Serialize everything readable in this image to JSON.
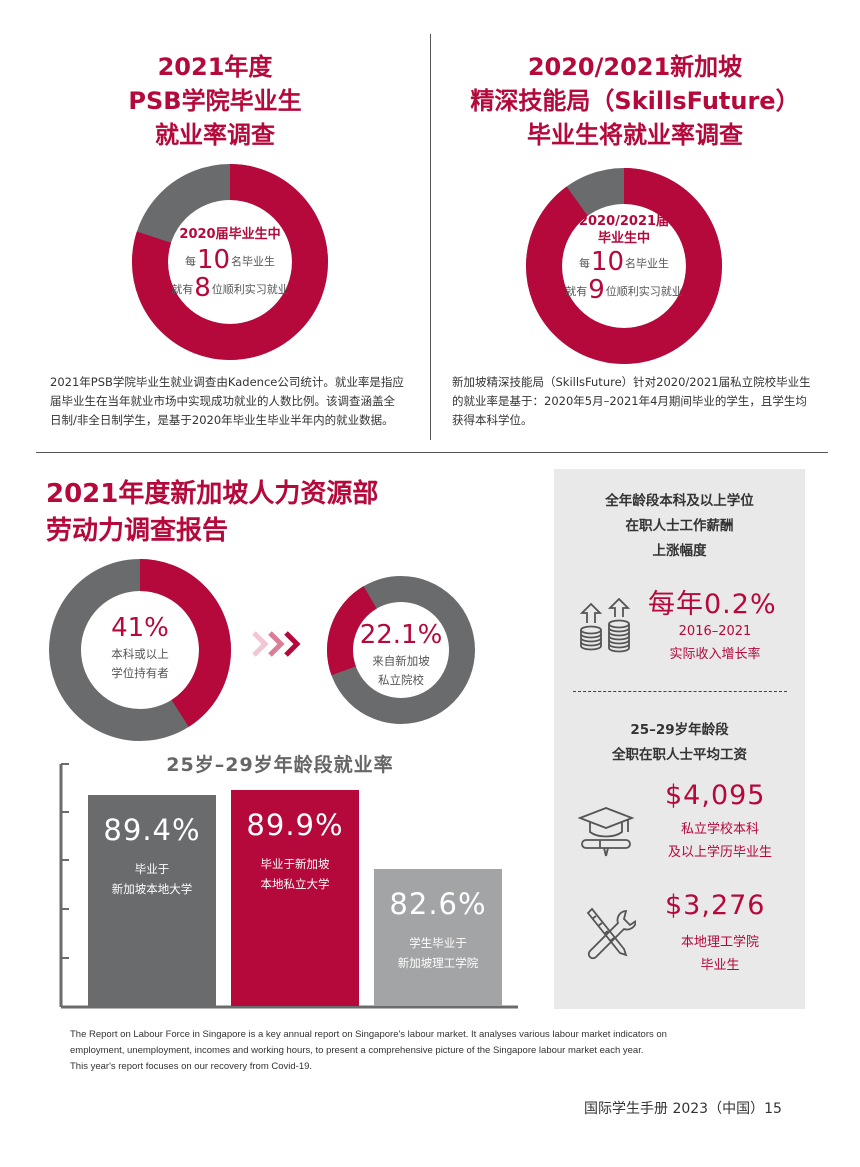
{
  "psb": {
    "title_lines": [
      "2021年度",
      "PSB学院毕业生",
      "就业率调查"
    ],
    "donut_head": "2020届毕业生中",
    "line1_pre": "每",
    "line1_num": "10",
    "line1_post": "名毕业生",
    "line2_pre": "就有",
    "line2_num": "8",
    "line2_post": "位顺利实习就业",
    "employed_fraction": 0.8,
    "para_lines": [
      "2021年PSB学院毕业生就业调查由Kadence公司统计。就业率是指应",
      "届毕业生在当年就业市场中实现成功就业的人数比例。该调查涵盖全",
      "日制/非全日制学生，是基于2020年毕业生毕业半年内的就业数据。"
    ]
  },
  "skillsfuture": {
    "title_lines": [
      "2020/2021新加坡",
      "精深技能局（SkillsFuture）",
      "毕业生将就业率调查"
    ],
    "donut_head_lines": [
      "2020/2021届",
      "毕业生中"
    ],
    "line1_pre": "每",
    "line1_num": "10",
    "line1_post": "名毕业生",
    "line2_pre": "就有",
    "line2_num": "9",
    "line2_post": "位顺利实习就业",
    "employed_fraction": 0.9,
    "para_lines": [
      "新加坡精深技能局（SkillsFuture）针对2020/2021届私立院校毕业生",
      "的就业率是基于：2020年5月–2021年4月期间毕业的学生，且学生均",
      "获得本科学位。"
    ]
  },
  "mom": {
    "title_lines": [
      "2021年度新加坡人力资源部",
      "劳动力调查报告"
    ],
    "degree_holders": {
      "value": "41%",
      "fraction": 0.41,
      "label_lines": [
        "本科或以上",
        "学位持有者"
      ]
    },
    "private_school": {
      "value": "22.1%",
      "fraction": 0.221,
      "label_lines": [
        "来自新加坡",
        "私立院校"
      ]
    },
    "chevrons": "»»",
    "bars_title": "25岁–29岁年龄段就业率",
    "bars": [
      {
        "value": "89.4%",
        "label_lines": [
          "毕业于",
          "新加坡本地大学"
        ],
        "pct": 89.4,
        "color": "#6a6b6d"
      },
      {
        "value": "89.9%",
        "label_lines": [
          "毕业于新加坡",
          "本地私立大学"
        ],
        "pct": 89.9,
        "color": "#b5083b"
      },
      {
        "value": "82.6%",
        "label_lines": [
          "学生毕业于",
          "新加坡理工学院"
        ],
        "pct": 82.6,
        "color": "#a3a4a6"
      }
    ]
  },
  "panel": {
    "salary_growth_head": [
      "全年龄段本科及以上学位",
      "在职人士工作薪酬",
      "上涨幅度"
    ],
    "salary_growth_value": "每年0.2%",
    "salary_growth_label": [
      "2016–2021",
      "实际收入增长率"
    ],
    "wage_head": [
      "25–29岁年龄段",
      "全职在职人士平均工资"
    ],
    "private_value": "$4,095",
    "private_label": [
      "私立学校本科",
      "及以上学历毕业生"
    ],
    "poly_value": "$3,276",
    "poly_label": [
      "本地理工学院",
      "毕业生"
    ]
  },
  "footnote_lines": [
    "The Report on Labour Force in Singapore is a key annual report on Singapore's labour market. It analyses various labour market indicators on",
    "employment, unemployment, incomes and working hours, to present a comprehensive picture of the Singapore labour market each year.",
    "This year's report focuses on our recovery from Covid-19."
  ],
  "page_footer": "国际学生手册 2023（中国）15",
  "colors": {
    "accent": "#b5083b",
    "dark_gray": "#6a6b6d",
    "light_gray": "#a3a4a6",
    "panel_bg": "#e9e9e9"
  }
}
